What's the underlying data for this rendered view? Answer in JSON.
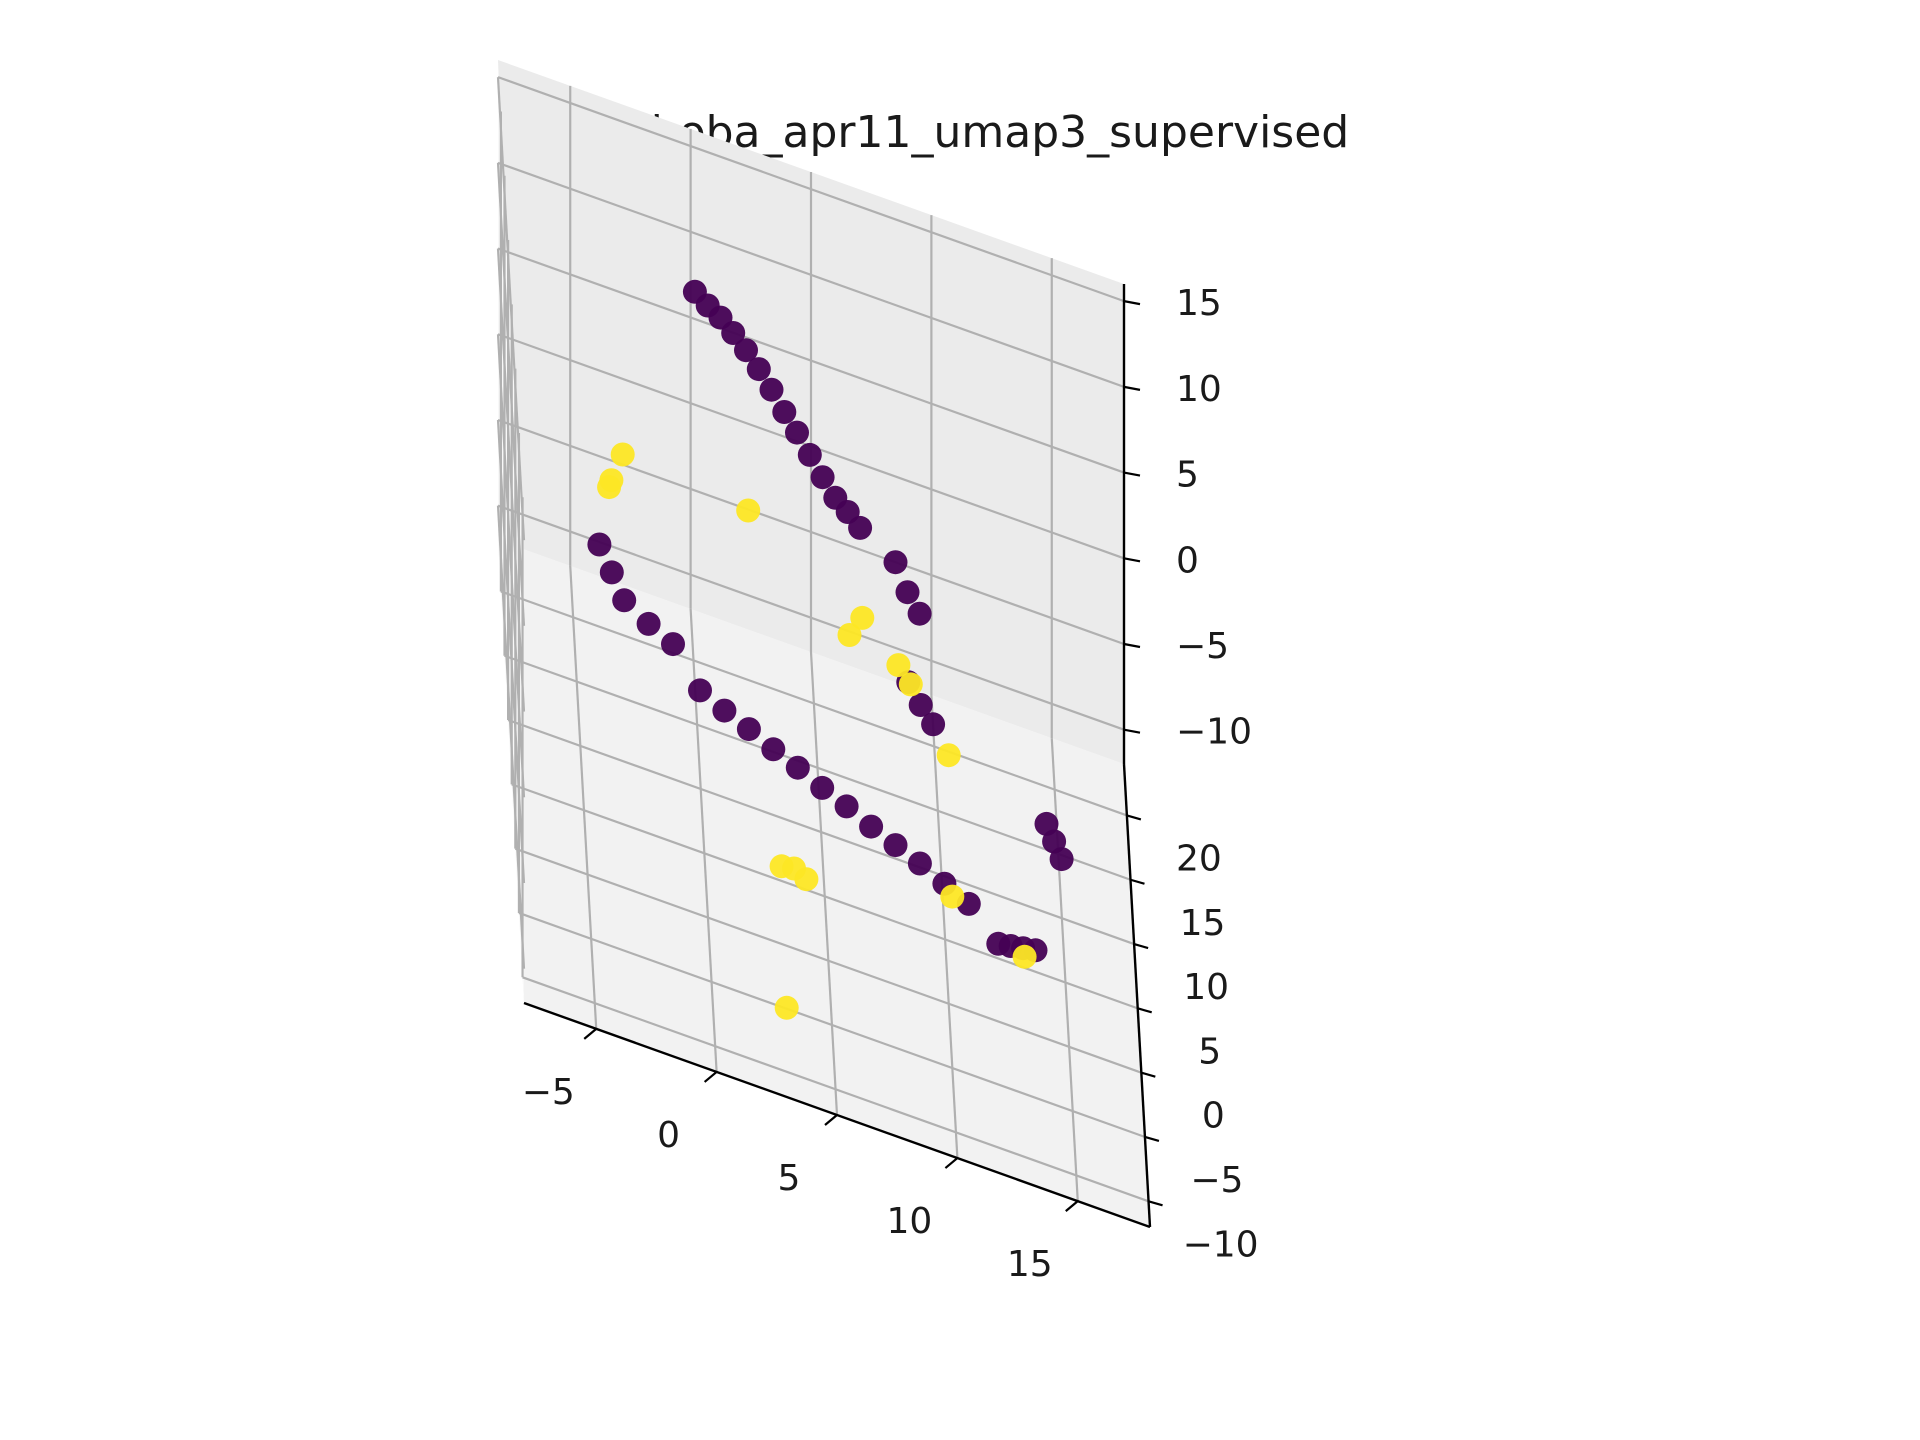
{
  "chart_data": {
    "type": "scatter",
    "projection": "3d",
    "title": "boba_apr11_umap3_supervised",
    "xlabel": "",
    "ylabel": "",
    "zlabel": "",
    "xticks": [
      -5,
      0,
      5,
      10,
      15
    ],
    "yticks": [
      -10,
      -5,
      0,
      5,
      10,
      15,
      20
    ],
    "zticks": [
      -10,
      -5,
      0,
      5,
      10,
      15
    ],
    "grid": true,
    "colors": {
      "class_0": "#440154",
      "class_1": "#fde725",
      "pane_light": "#f8f8f8",
      "pane_mid": "#f2f2f2",
      "pane_dark": "#ebebeb",
      "grid": "#b0b0b0"
    },
    "series": [
      {
        "color": "#440154",
        "points": [
          {
            "x": 0,
            "y": 18,
            "z": 11
          },
          {
            "x": 0.5,
            "y": 17,
            "z": 11.2
          },
          {
            "x": 1,
            "y": 16,
            "z": 11.5
          },
          {
            "x": 1.5,
            "y": 15,
            "z": 11.6
          },
          {
            "x": 2,
            "y": 14,
            "z": 11.6
          },
          {
            "x": 2.5,
            "y": 13,
            "z": 11.5
          },
          {
            "x": 3,
            "y": 12,
            "z": 11.3
          },
          {
            "x": 3.5,
            "y": 11,
            "z": 11
          },
          {
            "x": 4,
            "y": 10,
            "z": 10.8
          },
          {
            "x": 4.5,
            "y": 9,
            "z": 10.5
          },
          {
            "x": 5,
            "y": 8,
            "z": 10.2
          },
          {
            "x": 5.5,
            "y": 7,
            "z": 10
          },
          {
            "x": 6,
            "y": 6.5,
            "z": 9.8
          },
          {
            "x": 6.5,
            "y": 6,
            "z": 9.5
          },
          {
            "x": 8,
            "y": 7,
            "z": 7.5
          },
          {
            "x": 8.5,
            "y": 7,
            "z": 6
          },
          {
            "x": 9,
            "y": 7,
            "z": 5
          },
          {
            "x": 8.5,
            "y": 6,
            "z": 1.5
          },
          {
            "x": 9,
            "y": 5.5,
            "z": 0.8
          },
          {
            "x": 9.5,
            "y": 5,
            "z": 0.3
          },
          {
            "x": 14,
            "y": -2,
            "z": 2
          },
          {
            "x": 14.3,
            "y": -2.5,
            "z": 1.5
          },
          {
            "x": 14.6,
            "y": -3,
            "z": 1
          },
          {
            "x": 12,
            "y": -2,
            "z": -6
          },
          {
            "x": 12.5,
            "y": -2.5,
            "z": -5.5
          },
          {
            "x": 13,
            "y": -3,
            "z": -5
          },
          {
            "x": 13.5,
            "y": -3.5,
            "z": -4.5
          },
          {
            "x": -4,
            "y": 17,
            "z": -5
          },
          {
            "x": -3.5,
            "y": 16.5,
            "z": -6
          },
          {
            "x": -3,
            "y": 16,
            "z": -7
          },
          {
            "x": -2,
            "y": 15.5,
            "z": -7.5
          },
          {
            "x": -1,
            "y": 15,
            "z": -7.8
          },
          {
            "x": 0,
            "y": 11,
            "z": -7
          },
          {
            "x": 1,
            "y": 10.5,
            "z": -7.3
          },
          {
            "x": 2,
            "y": 10,
            "z": -7.5
          },
          {
            "x": 3,
            "y": 9.5,
            "z": -7.8
          },
          {
            "x": 4,
            "y": 9,
            "z": -8
          },
          {
            "x": 5,
            "y": 8.5,
            "z": -8.3
          },
          {
            "x": 6,
            "y": 8,
            "z": -8.5
          },
          {
            "x": 7,
            "y": 7.5,
            "z": -8.8
          },
          {
            "x": 8,
            "y": 7,
            "z": -9
          },
          {
            "x": 9,
            "y": 6.5,
            "z": -9.2
          },
          {
            "x": 10,
            "y": 6,
            "z": -9.5
          },
          {
            "x": 11,
            "y": 5.5,
            "z": -9.8
          }
        ]
      },
      {
        "color": "#fde725",
        "points": [
          {
            "x": 2,
            "y": 11,
            "z": 4.5
          },
          {
            "x": 6,
            "y": 4,
            "z": 4.5
          },
          {
            "x": 6.5,
            "y": 3,
            "z": 6.5
          },
          {
            "x": 8,
            "y": 3,
            "z": 4.5
          },
          {
            "x": 8.5,
            "y": 2.5,
            "z": 4
          },
          {
            "x": 10,
            "y": 0,
            "z": 2.5
          },
          {
            "x": -3,
            "y": 18,
            "z": 0
          },
          {
            "x": -3.5,
            "y": 17,
            "z": -1
          },
          {
            "x": -3.6,
            "y": 16.8,
            "z": -1.3
          },
          {
            "x": 10,
            "y": -5,
            "z": -2
          },
          {
            "x": 13,
            "y": -5,
            "z": -4
          },
          {
            "x": 3,
            "y": -2,
            "z": -6
          },
          {
            "x": 3.5,
            "y": -2.5,
            "z": -5.5
          },
          {
            "x": 4,
            "y": -3,
            "z": -5.5
          },
          {
            "x": 3,
            "y": -9,
            "z": -9
          }
        ]
      }
    ]
  }
}
